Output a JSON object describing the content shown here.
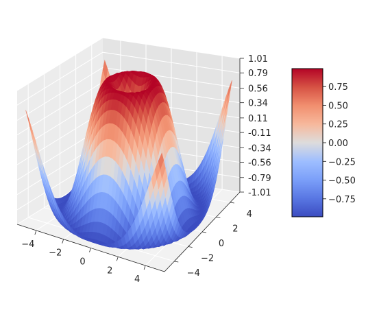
{
  "chart_data": {
    "type": "surface3d",
    "function": "sin(sqrt(x^2 + y^2))",
    "title": "",
    "xlabel": "",
    "ylabel": "",
    "zlabel": "",
    "xlim": [
      -5,
      5
    ],
    "ylim": [
      -5,
      5
    ],
    "zlim": [
      -1.01,
      1.01
    ],
    "x_ticks": [
      "−4",
      "−2",
      "0",
      "2",
      "4"
    ],
    "y_ticks": [
      "−4",
      "−2",
      "0",
      "2",
      "4"
    ],
    "z_ticks": [
      "-1.01",
      "-0.79",
      "-0.56",
      "-0.34",
      "-0.11",
      "0.11",
      "0.34",
      "0.56",
      "0.79",
      "1.01"
    ],
    "colormap": "coolwarm",
    "colorbar": {
      "range": [
        -0.99,
        0.99
      ],
      "ticks": [
        "0.75",
        "0.50",
        "0.25",
        "0.00",
        "−0.25",
        "−0.50",
        "−0.75"
      ],
      "placement": "right"
    },
    "grid": true
  }
}
